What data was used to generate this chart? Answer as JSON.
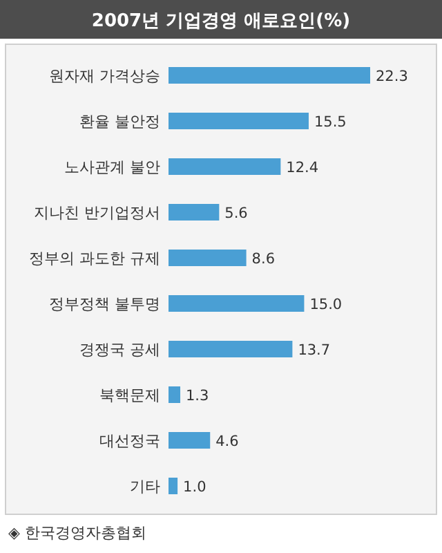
{
  "chart_data": {
    "type": "bar",
    "orientation": "horizontal",
    "title": "2007년 기업경영 애로요인(%)",
    "categories": [
      "원자재 가격상승",
      "환율 불안정",
      "노사관계 불안",
      "지나친 반기업정서",
      "정부의 과도한 규제",
      "정부정책 불투명",
      "경쟁국 공세",
      "북핵문제",
      "대선정국",
      "기타"
    ],
    "values": [
      22.3,
      15.5,
      12.4,
      5.6,
      8.6,
      15.0,
      13.7,
      1.3,
      4.6,
      1.0
    ],
    "value_labels": [
      "22.3",
      "15.5",
      "12.4",
      "5.6",
      "8.6",
      "15.0",
      "13.7",
      "1.3",
      "4.6",
      "1.0"
    ],
    "color": "#4a9fd4",
    "annotations": [
      "◈ 한국경영자총협회"
    ]
  }
}
